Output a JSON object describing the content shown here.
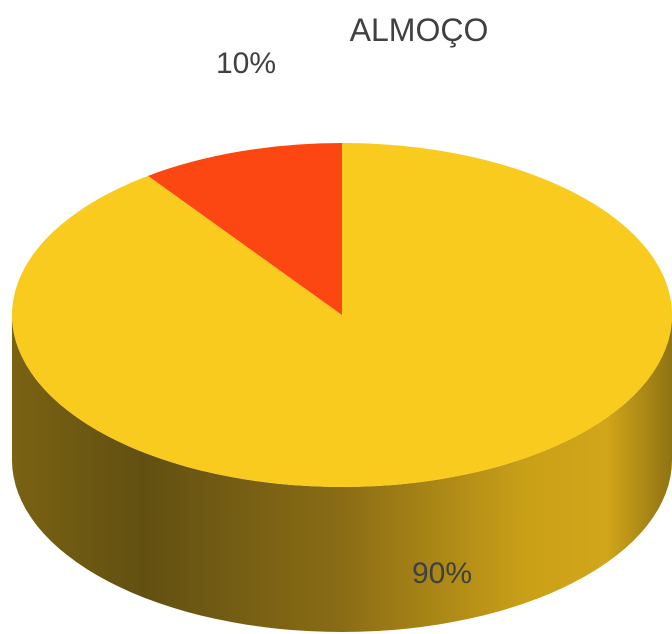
{
  "chart_data": {
    "type": "pie",
    "title": "ALMOÇO",
    "categories": [
      "",
      ""
    ],
    "values": [
      90,
      10
    ],
    "data_labels": [
      "90%",
      "10%"
    ],
    "colors": [
      "#F8CB1E",
      "#FC4713"
    ],
    "style": "3d",
    "legend": "none"
  }
}
